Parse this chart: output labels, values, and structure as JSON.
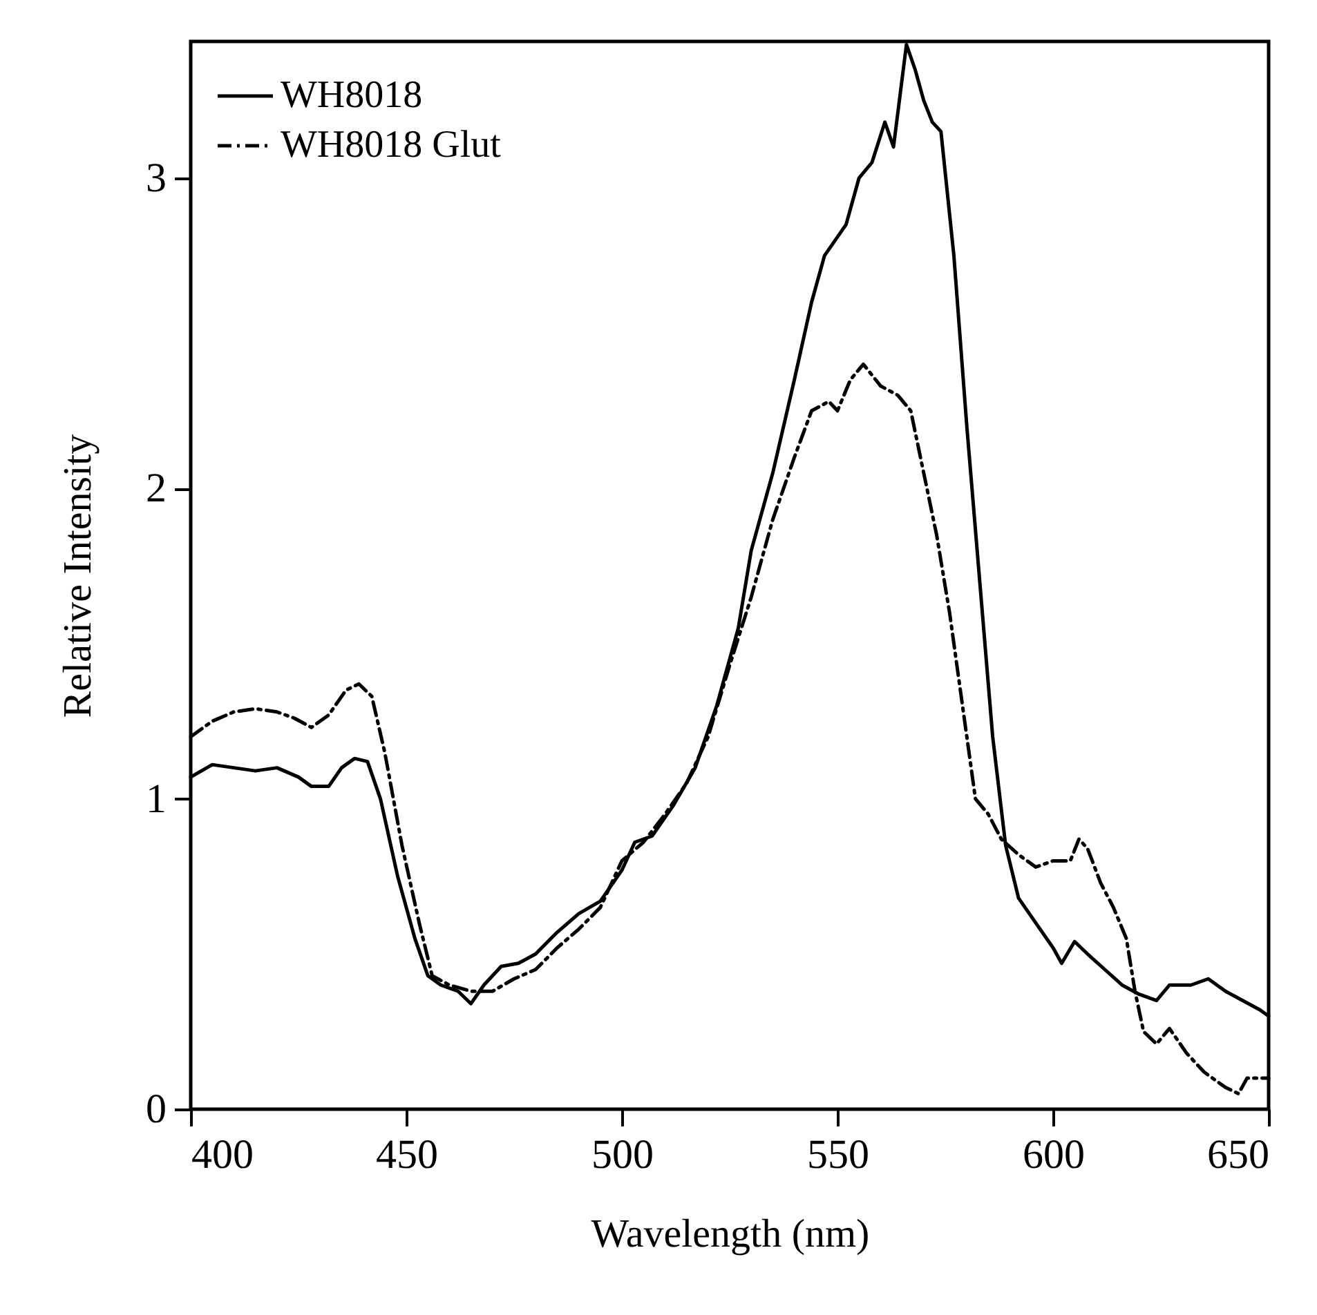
{
  "chart_data": {
    "type": "line",
    "xlabel": "Wavelength (nm)",
    "ylabel": "Relative Intensity",
    "xlim": [
      400,
      650
    ],
    "xticks": [
      400,
      450,
      500,
      550,
      600,
      650
    ],
    "ylim": [
      0,
      3.44
    ],
    "yticks": [
      0,
      1,
      2,
      3
    ],
    "grid": false,
    "legend": "top left",
    "marker": "none",
    "series": [
      {
        "name": "WH8018",
        "color": "#000000",
        "line_style": "solid",
        "x": [
          400,
          405,
          410,
          415,
          420,
          425,
          428,
          432,
          435,
          438,
          441,
          444,
          448,
          452,
          455,
          458,
          462,
          465,
          468,
          472,
          476,
          480,
          485,
          490,
          495,
          500,
          503,
          507,
          512,
          517,
          522,
          527,
          530,
          535,
          540,
          544,
          547,
          552,
          555,
          558,
          561,
          563,
          566,
          568,
          570,
          572,
          574,
          577,
          580,
          583,
          586,
          589,
          592,
          596,
          600,
          602,
          605,
          608,
          612,
          616,
          620,
          624,
          627,
          632,
          636,
          640,
          644,
          648,
          650
        ],
        "values": [
          1.07,
          1.11,
          1.1,
          1.09,
          1.1,
          1.07,
          1.04,
          1.04,
          1.1,
          1.13,
          1.12,
          1.0,
          0.75,
          0.55,
          0.43,
          0.4,
          0.38,
          0.34,
          0.4,
          0.46,
          0.47,
          0.5,
          0.57,
          0.63,
          0.67,
          0.77,
          0.86,
          0.88,
          0.98,
          1.1,
          1.3,
          1.55,
          1.8,
          2.05,
          2.35,
          2.6,
          2.75,
          2.85,
          3.0,
          3.05,
          3.18,
          3.1,
          3.43,
          3.35,
          3.25,
          3.18,
          3.15,
          2.75,
          2.2,
          1.7,
          1.2,
          0.85,
          0.68,
          0.6,
          0.52,
          0.47,
          0.54,
          0.5,
          0.45,
          0.4,
          0.37,
          0.35,
          0.4,
          0.4,
          0.42,
          0.38,
          0.35,
          0.32,
          0.3
        ]
      },
      {
        "name": "WH8018  Glut",
        "color": "#000000",
        "line_style": "dashed",
        "x": [
          400,
          405,
          410,
          415,
          420,
          424,
          428,
          432,
          436,
          439,
          442,
          445,
          449,
          453,
          456,
          460,
          465,
          470,
          475,
          480,
          485,
          490,
          495,
          500,
          505,
          510,
          515,
          520,
          525,
          530,
          535,
          540,
          544,
          548,
          550,
          553,
          556,
          560,
          564,
          567,
          570,
          573,
          576,
          579,
          582,
          585,
          588,
          592,
          596,
          600,
          604,
          606,
          608,
          611,
          614,
          617,
          619,
          621,
          624,
          627,
          631,
          635,
          640,
          643,
          645,
          650
        ],
        "values": [
          1.2,
          1.25,
          1.28,
          1.29,
          1.28,
          1.26,
          1.23,
          1.27,
          1.35,
          1.37,
          1.33,
          1.15,
          0.85,
          0.6,
          0.43,
          0.4,
          0.38,
          0.38,
          0.42,
          0.45,
          0.52,
          0.58,
          0.65,
          0.8,
          0.86,
          0.95,
          1.05,
          1.2,
          1.43,
          1.65,
          1.9,
          2.1,
          2.25,
          2.28,
          2.25,
          2.35,
          2.4,
          2.33,
          2.3,
          2.25,
          2.05,
          1.85,
          1.6,
          1.3,
          1.0,
          0.95,
          0.87,
          0.82,
          0.78,
          0.8,
          0.8,
          0.87,
          0.84,
          0.73,
          0.65,
          0.55,
          0.38,
          0.25,
          0.21,
          0.26,
          0.18,
          0.12,
          0.07,
          0.05,
          0.1,
          0.1
        ]
      }
    ]
  }
}
